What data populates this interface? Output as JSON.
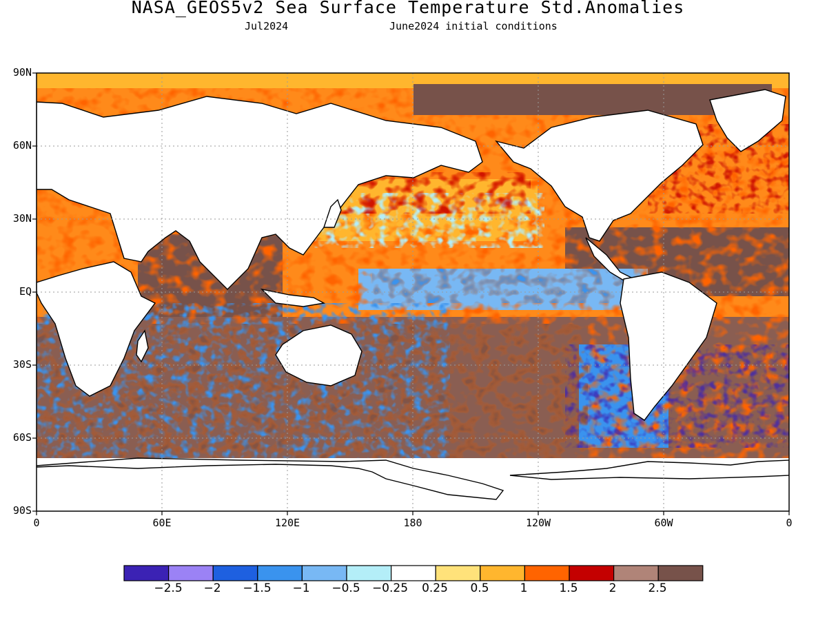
{
  "title": "NASA_GEOS5v2 Sea Surface Temperature Std.Anomalies",
  "subtitle_left": "Jul2024",
  "subtitle_right": "June2024 initial conditions",
  "lat_labels": [
    "90N",
    "60N",
    "30N",
    "EQ",
    "30S",
    "60S",
    "90S"
  ],
  "lon_labels": [
    "0",
    "60E",
    "120E",
    "180",
    "120W",
    "60W",
    "0"
  ],
  "colorbar": {
    "colors": [
      "#3b22b4",
      "#9b82f5",
      "#1e60e0",
      "#3a93ee",
      "#78b8f4",
      "#b4eef8",
      "#ffffff",
      "#ffe27a",
      "#ffb62e",
      "#ff6400",
      "#c40000",
      "#b08478",
      "#77524a"
    ],
    "labels": [
      "−2.5",
      "−2",
      "−1.5",
      "−1",
      "−0.5",
      "−0.25",
      "0.25",
      "0.5",
      "1",
      "1.5",
      "2",
      "2.5"
    ]
  }
}
